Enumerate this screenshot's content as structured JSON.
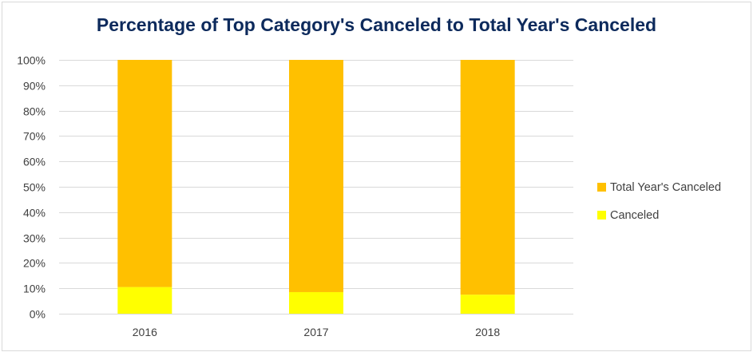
{
  "chart_data": {
    "type": "bar",
    "stacked": true,
    "title": "Percentage of Top Category's Canceled to Total Year's Canceled",
    "xlabel": "",
    "ylabel": "",
    "categories": [
      "2016",
      "2017",
      "2018"
    ],
    "y_ticks": [
      "0%",
      "10%",
      "20%",
      "30%",
      "40%",
      "50%",
      "60%",
      "70%",
      "80%",
      "90%",
      "100%"
    ],
    "ylim": [
      0,
      100
    ],
    "grid": true,
    "legend_position": "right",
    "series": [
      {
        "name": "Canceled",
        "values": [
          10.5,
          8.5,
          7.5
        ],
        "color": "#ffff00"
      },
      {
        "name": "Total Year's Canceled",
        "values": [
          89.5,
          91.5,
          92.5
        ],
        "color": "#ffc000"
      }
    ],
    "legend": [
      {
        "label": "Total Year's Canceled",
        "color": "#ffc000"
      },
      {
        "label": "Canceled",
        "color": "#ffff00"
      }
    ],
    "title_color": "#0d2a5c",
    "grid_color": "#d9d9d9"
  }
}
